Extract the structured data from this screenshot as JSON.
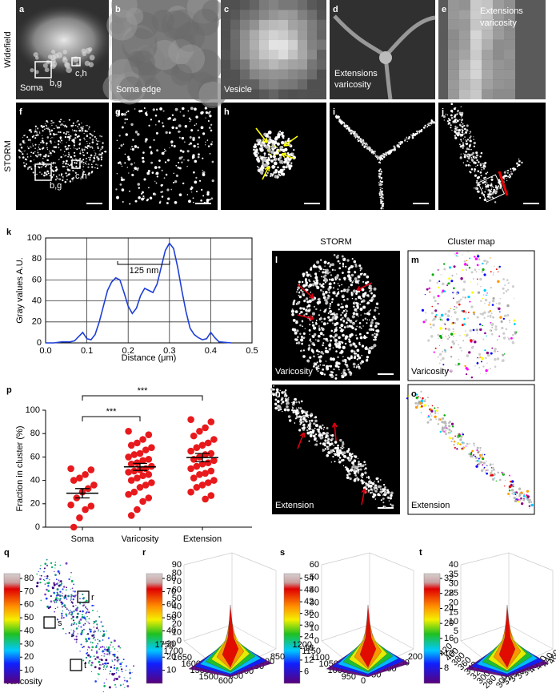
{
  "row_labels": [
    "Widefield",
    "STORM"
  ],
  "panels": {
    "a": {
      "letter": "a",
      "label": "Soma",
      "boxes": [
        "b,g",
        "c,h"
      ]
    },
    "b": {
      "letter": "b",
      "label": "Soma edge"
    },
    "c": {
      "letter": "c",
      "label": "Vesicle"
    },
    "d": {
      "letter": "d",
      "label": [
        "Extensions",
        "varicosity"
      ]
    },
    "e": {
      "letter": "e",
      "label": [
        "Extensions",
        "varicosity"
      ]
    },
    "f": {
      "letter": "f",
      "boxes": [
        "b,g",
        "c,h"
      ]
    },
    "g": {
      "letter": "g"
    },
    "h": {
      "letter": "h"
    },
    "i": {
      "letter": "i"
    },
    "j": {
      "letter": "j"
    },
    "l": {
      "letter": "l",
      "header": "STORM",
      "label": "Varicosity"
    },
    "m": {
      "letter": "m",
      "header": "Cluster map",
      "label": "Varicosity"
    },
    "n": {
      "letter": "n",
      "label": "Extension"
    },
    "o": {
      "letter": "o",
      "label": "Extension"
    },
    "q": {
      "letter": "q",
      "label": "Varicosity",
      "boxes": [
        "r",
        "s",
        "t"
      ]
    }
  },
  "chart_data": [
    {
      "type": "line",
      "panel": "k",
      "xlabel": "Distance (μm)",
      "ylabel": "Gray values A.U.",
      "annotation": "125 nm",
      "grid": true,
      "xlim": [
        0,
        0.5
      ],
      "ylim": [
        0,
        100
      ],
      "xticks": [
        {
          "value": 0,
          "label": "0.0"
        },
        0.1,
        0.2,
        0.3,
        0.4,
        0.5
      ],
      "yticks": [
        0,
        20,
        40,
        60,
        80,
        100
      ],
      "x": [
        0,
        0.02,
        0.04,
        0.06,
        0.07,
        0.08,
        0.09,
        0.1,
        0.11,
        0.12,
        0.13,
        0.14,
        0.15,
        0.16,
        0.17,
        0.18,
        0.19,
        0.2,
        0.21,
        0.22,
        0.23,
        0.24,
        0.25,
        0.26,
        0.27,
        0.28,
        0.29,
        0.3,
        0.31,
        0.32,
        0.33,
        0.34,
        0.35,
        0.36,
        0.37,
        0.38,
        0.39,
        0.4,
        0.41,
        0.42,
        0.45
      ],
      "series": [
        {
          "color": "#1f3fd6",
          "values": [
            0,
            0,
            1,
            1,
            2,
            6,
            10,
            4,
            3,
            8,
            20,
            35,
            50,
            58,
            62,
            60,
            48,
            35,
            28,
            33,
            45,
            52,
            50,
            48,
            56,
            72,
            88,
            95,
            90,
            72,
            50,
            30,
            14,
            8,
            5,
            3,
            4,
            10,
            5,
            1,
            0
          ]
        }
      ]
    },
    {
      "type": "strip",
      "panel": "p",
      "ylabel": "Fraction in cluster (%)",
      "color": "#e8191c",
      "ylim": [
        0,
        100
      ],
      "yticks": [
        0,
        20,
        40,
        60,
        80,
        100
      ],
      "categories": [
        "Soma",
        "Varicosity",
        "Extension"
      ],
      "values": [
        [
          50,
          49,
          45,
          42,
          40,
          36,
          33,
          30,
          25,
          19,
          18,
          15,
          8,
          0
        ],
        [
          82,
          79,
          75,
          72,
          70,
          68,
          66,
          63,
          62,
          60,
          58,
          57,
          55,
          54,
          52,
          50,
          49,
          48,
          47,
          45,
          44,
          42,
          40,
          38,
          36,
          34,
          30,
          28,
          25,
          22,
          15,
          10
        ],
        [
          92,
          90,
          85,
          82,
          78,
          75,
          72,
          70,
          68,
          65,
          63,
          62,
          60,
          58,
          57,
          55,
          54,
          52,
          50,
          48,
          46,
          45,
          42,
          40,
          38,
          36,
          34,
          30,
          27,
          24
        ]
      ],
      "means": [
        29,
        51.5,
        59.5
      ],
      "errors": [
        4,
        3,
        3.5
      ],
      "annotations": [
        "***",
        "***"
      ]
    }
  ],
  "colorbars": [
    {
      "panel": "q",
      "ylim": [
        0,
        80
      ],
      "yticks": [
        10,
        20,
        30,
        40,
        50,
        60,
        70,
        80
      ]
    },
    {
      "panel": "r",
      "ylim": [
        0,
        80
      ],
      "yticks": [
        10,
        20,
        30,
        40,
        50,
        60,
        70,
        80
      ]
    },
    {
      "panel": "s",
      "ylim": [
        0,
        54
      ],
      "yticks": [
        6,
        12,
        18,
        24,
        30,
        36,
        42,
        48,
        54
      ]
    },
    {
      "panel": "t",
      "ylim": [
        4,
        32
      ],
      "yticks": [
        8,
        12,
        16,
        20,
        24,
        28,
        32
      ]
    }
  ],
  "surfaces": [
    {
      "letter": "r",
      "zticks": [
        0,
        10,
        20,
        30,
        40,
        50,
        60,
        70,
        80,
        90
      ],
      "left_ticks": [
        1750,
        1700,
        1650,
        1600,
        1550,
        1500
      ],
      "right_ticks": [
        600,
        650,
        700,
        750,
        800,
        850
      ]
    },
    {
      "letter": "s",
      "zticks": [
        0,
        10,
        20,
        30,
        40,
        50,
        60
      ],
      "left_ticks": [
        1200,
        1150,
        1100,
        1050,
        1000,
        950
      ],
      "right_ticks": [
        0,
        50,
        100,
        150,
        200
      ]
    },
    {
      "letter": "t",
      "zticks": [
        0,
        5,
        10,
        15,
        20,
        25,
        30,
        35,
        40
      ],
      "left_ticks": [
        420,
        400,
        380,
        360,
        340,
        320,
        300,
        280
      ],
      "right_ticks": [
        300,
        320,
        340,
        360,
        380,
        400,
        420,
        440,
        460
      ]
    }
  ]
}
